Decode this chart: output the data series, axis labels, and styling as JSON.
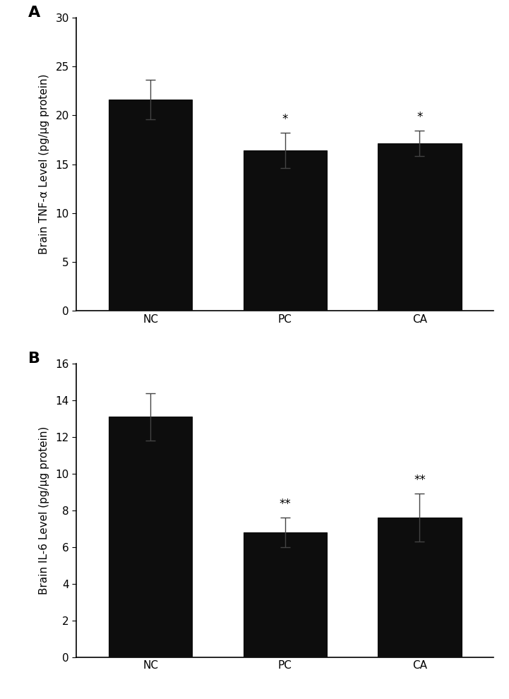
{
  "panel_A": {
    "label": "A",
    "categories": [
      "NC",
      "PC",
      "CA"
    ],
    "values": [
      21.6,
      16.4,
      17.1
    ],
    "errors": [
      2.0,
      1.8,
      1.3
    ],
    "ylabel": "Brain TNF-α Level (pg/μg protein)",
    "ylim": [
      0,
      30
    ],
    "yticks": [
      0,
      5,
      10,
      15,
      20,
      25,
      30
    ],
    "significance": [
      "",
      "*",
      "*"
    ],
    "bar_color": "#0d0d0d",
    "error_color": "#555555"
  },
  "panel_B": {
    "label": "B",
    "categories": [
      "NC",
      "PC",
      "CA"
    ],
    "values": [
      13.1,
      6.8,
      7.6
    ],
    "errors": [
      1.3,
      0.8,
      1.3
    ],
    "ylabel": "Brain IL-6 Level (pg/μg protein)",
    "ylim": [
      0,
      16
    ],
    "yticks": [
      0,
      2,
      4,
      6,
      8,
      10,
      12,
      14,
      16
    ],
    "significance": [
      "",
      "**",
      "**"
    ],
    "bar_color": "#0d0d0d",
    "error_color": "#555555"
  },
  "background_color": "#ffffff",
  "bar_width": 0.62,
  "font_size_label": 11,
  "font_size_tick": 11,
  "font_size_sig": 12
}
